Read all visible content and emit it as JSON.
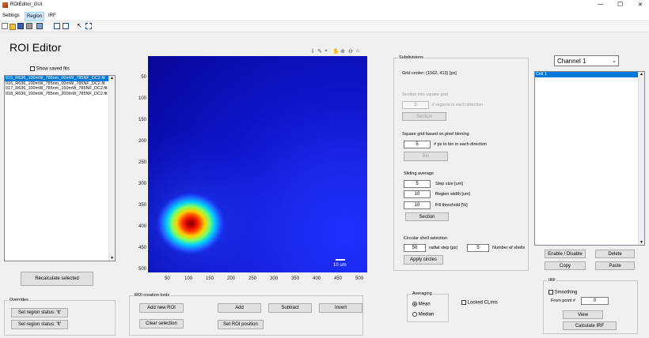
{
  "window": {
    "title": "ROIEditor_GUI",
    "controls": {
      "minimize": "—",
      "maximize": "☐",
      "close": "✕"
    }
  },
  "menu": [
    "Settings",
    "Region",
    "IRF"
  ],
  "toolbar_icons": [
    "new-file-icon",
    "open-folder-icon",
    "save-icon",
    "print-icon",
    "print-preview-icon",
    "page-setup-icon",
    "layout-icon",
    "pointer-icon",
    "select-region-icon"
  ],
  "app_title": "ROI Editor",
  "show_saved": {
    "label": "Show saved fits",
    "checked": false
  },
  "file_list": {
    "items": [
      "015_R636_100mW_785nm_00mW_785NF_DC2.fit",
      "016_R636_100mW_785nm_00mW_785NF_DC2.fit",
      "017_R636_100mW_785nm_150mW_785NF_DC2.fit",
      "018_R636_100mW_785nm_200mW_785NF_DC2.fit"
    ],
    "selected_index": 0
  },
  "recalculate_button": "Recalculate selected",
  "overrides": {
    "title": "Overrides",
    "set_true": "Set region status: 'tt'",
    "set_false": "Set region status: 'ft'"
  },
  "image": {
    "y_ticks": [
      "50",
      "100",
      "150",
      "200",
      "250",
      "300",
      "350",
      "400",
      "450",
      "500"
    ],
    "x_ticks": [
      "50",
      "100",
      "150",
      "200",
      "250",
      "300",
      "350",
      "400",
      "450",
      "500"
    ],
    "scalebar_label": "10 um",
    "colormap": "jet",
    "hotspot_data": {
      "x": 100,
      "y": 390
    }
  },
  "axes_toolbar_icons": [
    "export-icon",
    "brush-icon",
    "data-tips-icon",
    "pan-icon",
    "zoom-in-icon",
    "zoom-out-icon",
    "home-icon"
  ],
  "roi_tools": {
    "title": "ROI creation tools",
    "add_new": "Add new ROI",
    "clear": "Clear selection",
    "add": "Add",
    "subtract": "Subtract",
    "invert": "Invert",
    "set_position": "Set ROI position"
  },
  "subdivisions": {
    "title": "Subdivisions",
    "grid_center": "Grid center: (1562, 413) [px]",
    "square_grid": {
      "title": "Section into square grid",
      "value": "5",
      "desc": "# regions in each direction",
      "button": "Section"
    },
    "pixel_binning": {
      "title": "Square grid based on pixel binning",
      "value": "5",
      "desc": "# px to bin in each direction",
      "button": "Bin"
    },
    "sliding": {
      "title": "Sliding average",
      "step_value": "5",
      "step_label": "Step size [um]",
      "width_value": "10",
      "width_label": "Region width [um]",
      "fill_value": "10",
      "fill_label": "Fill threshold [%]",
      "button": "Section"
    },
    "circular": {
      "title": "Circular shell selection",
      "radial_value": "50",
      "radial_label": "radial step (px)",
      "shells_value": "5",
      "shells_label": "Number of shells",
      "button": "Apply circles"
    }
  },
  "averaging": {
    "title": "Averaging",
    "options": [
      "Mean",
      "Median"
    ],
    "selected": "Mean",
    "locked_label": "Locked CLims"
  },
  "channel": {
    "dropdown_value": "Channel 1",
    "list_items": [
      "Cell 1"
    ],
    "selected_index": 0
  },
  "channel_buttons": {
    "enable": "Enable / Disable",
    "delete": "Delete",
    "copy": "Copy",
    "paste": "Paste"
  },
  "irf": {
    "title": "IRF",
    "smoothing": "Smoothing",
    "from_point_label": "From point #",
    "from_point_value": "0",
    "view": "View",
    "calculate": "Calculate IRF"
  }
}
